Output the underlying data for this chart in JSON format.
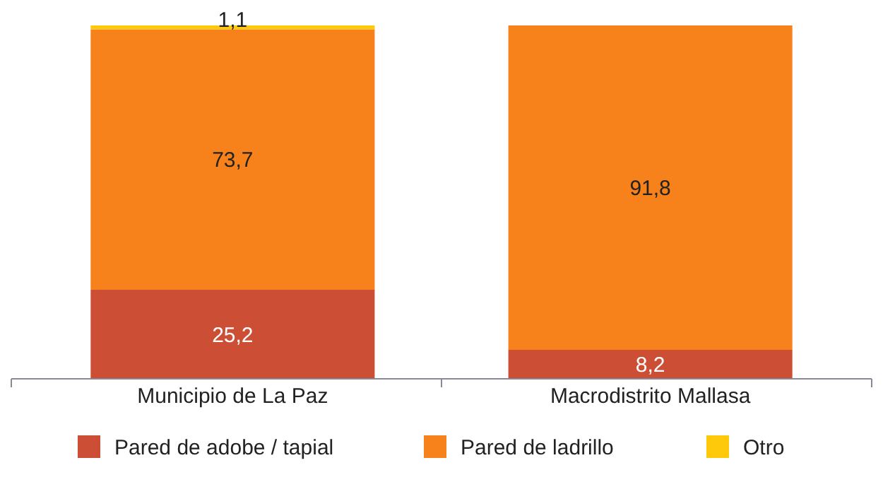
{
  "chart_data": {
    "type": "bar",
    "stacked": true,
    "categories": [
      "Municipio de La Paz",
      "Macrodistrito Mallasa"
    ],
    "series": [
      {
        "name": "Pared de adobe / tapial",
        "color": "#cc4f35",
        "values": [
          25.2,
          8.2
        ],
        "value_labels": [
          "25,2",
          "8,2"
        ]
      },
      {
        "name": "Pared de ladrillo",
        "color": "#f7811b",
        "values": [
          73.7,
          91.8
        ],
        "value_labels": [
          "73,7",
          "91,8"
        ]
      },
      {
        "name": "Otro",
        "color": "#fdc90a",
        "values": [
          1.1,
          null
        ],
        "value_labels": [
          "1,1",
          null
        ]
      }
    ],
    "legend": "bottom",
    "grid": false
  }
}
